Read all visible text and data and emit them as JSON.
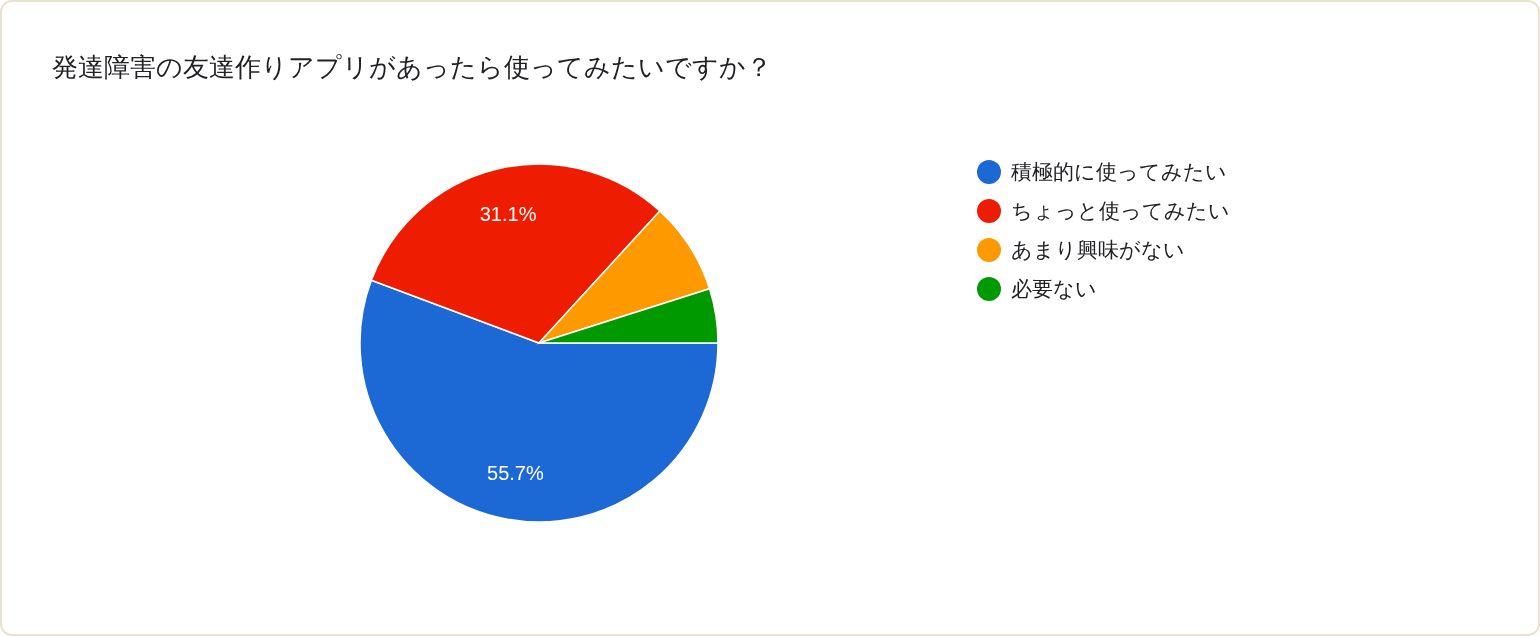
{
  "chart_data": {
    "type": "pie",
    "title": "発達障害の友達作りアプリがあったら使ってみたいですか？",
    "categories": [
      "積極的に使ってみたい",
      "ちょっと使ってみたい",
      "あまり興味がない",
      "必要ない"
    ],
    "values": [
      55.7,
      31.1,
      8.3,
      4.9
    ],
    "colors": [
      "#1c68d4",
      "#ee1c00",
      "#ff9900",
      "#009900"
    ],
    "value_labels": [
      "55.7%",
      "31.1%",
      null,
      null
    ],
    "legend": "right"
  }
}
